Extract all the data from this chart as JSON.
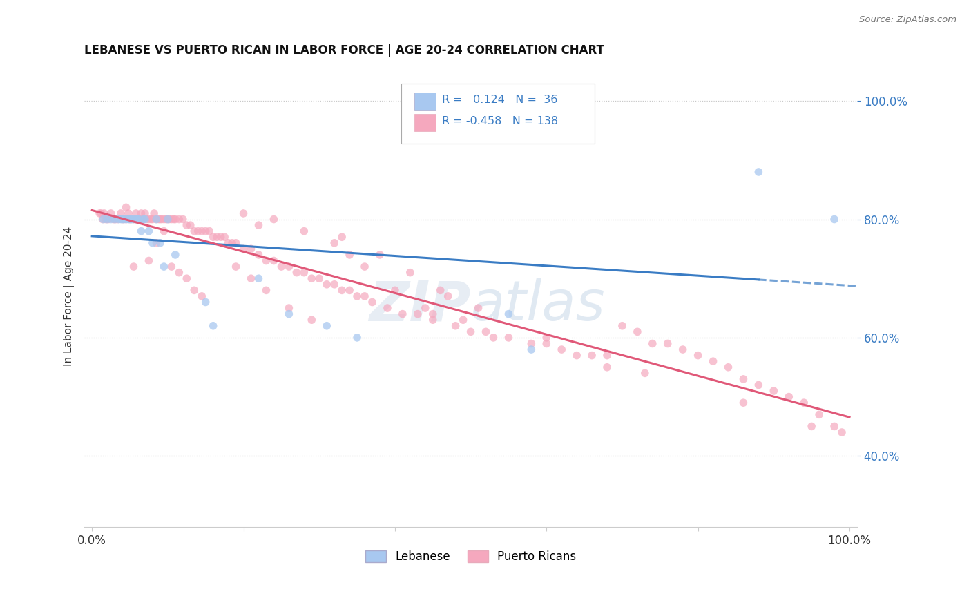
{
  "title": "LEBANESE VS PUERTO RICAN IN LABOR FORCE | AGE 20-24 CORRELATION CHART",
  "source": "Source: ZipAtlas.com",
  "ylabel": "In Labor Force | Age 20-24",
  "legend_blue_r": "0.124",
  "legend_blue_n": "36",
  "legend_pink_r": "-0.458",
  "legend_pink_n": "138",
  "blue_color": "#a8c8f0",
  "pink_color": "#f5a8be",
  "line_blue": "#3a7cc4",
  "line_pink": "#e05878",
  "blue_x": [
    0.015,
    0.02,
    0.025,
    0.03,
    0.035,
    0.038,
    0.04,
    0.042,
    0.045,
    0.048,
    0.05,
    0.052,
    0.055,
    0.058,
    0.06,
    0.062,
    0.065,
    0.068,
    0.07,
    0.075,
    0.08,
    0.085,
    0.09,
    0.095,
    0.1,
    0.11,
    0.15,
    0.16,
    0.22,
    0.26,
    0.31,
    0.35,
    0.55,
    0.58,
    0.88,
    0.98
  ],
  "blue_y": [
    0.8,
    0.8,
    0.8,
    0.8,
    0.8,
    0.8,
    0.8,
    0.8,
    0.8,
    0.8,
    0.8,
    0.8,
    0.8,
    0.8,
    0.8,
    0.8,
    0.78,
    0.8,
    0.8,
    0.78,
    0.76,
    0.8,
    0.76,
    0.72,
    0.8,
    0.74,
    0.66,
    0.62,
    0.7,
    0.64,
    0.62,
    0.6,
    0.64,
    0.58,
    0.88,
    0.8
  ],
  "pink_x": [
    0.01,
    0.012,
    0.014,
    0.016,
    0.018,
    0.02,
    0.022,
    0.025,
    0.028,
    0.03,
    0.032,
    0.035,
    0.038,
    0.04,
    0.042,
    0.045,
    0.048,
    0.05,
    0.052,
    0.055,
    0.058,
    0.06,
    0.062,
    0.065,
    0.068,
    0.07,
    0.072,
    0.075,
    0.078,
    0.08,
    0.082,
    0.085,
    0.088,
    0.09,
    0.092,
    0.095,
    0.098,
    0.1,
    0.102,
    0.105,
    0.108,
    0.11,
    0.115,
    0.12,
    0.125,
    0.13,
    0.135,
    0.14,
    0.145,
    0.15,
    0.155,
    0.16,
    0.165,
    0.17,
    0.175,
    0.18,
    0.185,
    0.19,
    0.2,
    0.21,
    0.22,
    0.23,
    0.24,
    0.25,
    0.26,
    0.27,
    0.28,
    0.29,
    0.3,
    0.31,
    0.32,
    0.33,
    0.34,
    0.35,
    0.36,
    0.37,
    0.39,
    0.41,
    0.43,
    0.45,
    0.48,
    0.5,
    0.52,
    0.55,
    0.58,
    0.6,
    0.62,
    0.64,
    0.66,
    0.68,
    0.7,
    0.72,
    0.74,
    0.76,
    0.78,
    0.8,
    0.82,
    0.84,
    0.86,
    0.88,
    0.9,
    0.92,
    0.94,
    0.96,
    0.98,
    0.99,
    0.055,
    0.075,
    0.085,
    0.095,
    0.105,
    0.115,
    0.125,
    0.135,
    0.145,
    0.19,
    0.21,
    0.23,
    0.26,
    0.29,
    0.33,
    0.38,
    0.42,
    0.46,
    0.51,
    0.24,
    0.28,
    0.32,
    0.36,
    0.4,
    0.44,
    0.49,
    0.53,
    0.2,
    0.34,
    0.47,
    0.6,
    0.73,
    0.86,
    0.95,
    0.045,
    0.065,
    0.22,
    0.45,
    0.68
  ],
  "pink_y": [
    0.81,
    0.81,
    0.8,
    0.81,
    0.8,
    0.8,
    0.8,
    0.81,
    0.8,
    0.8,
    0.8,
    0.8,
    0.81,
    0.8,
    0.8,
    0.8,
    0.81,
    0.8,
    0.8,
    0.8,
    0.81,
    0.8,
    0.8,
    0.8,
    0.8,
    0.81,
    0.8,
    0.8,
    0.8,
    0.8,
    0.81,
    0.8,
    0.8,
    0.8,
    0.8,
    0.8,
    0.8,
    0.8,
    0.8,
    0.8,
    0.8,
    0.8,
    0.8,
    0.8,
    0.79,
    0.79,
    0.78,
    0.78,
    0.78,
    0.78,
    0.78,
    0.77,
    0.77,
    0.77,
    0.77,
    0.76,
    0.76,
    0.76,
    0.75,
    0.75,
    0.74,
    0.73,
    0.73,
    0.72,
    0.72,
    0.71,
    0.71,
    0.7,
    0.7,
    0.69,
    0.69,
    0.68,
    0.68,
    0.67,
    0.67,
    0.66,
    0.65,
    0.64,
    0.64,
    0.63,
    0.62,
    0.61,
    0.61,
    0.6,
    0.59,
    0.59,
    0.58,
    0.57,
    0.57,
    0.55,
    0.62,
    0.61,
    0.59,
    0.59,
    0.58,
    0.57,
    0.56,
    0.55,
    0.53,
    0.52,
    0.51,
    0.5,
    0.49,
    0.47,
    0.45,
    0.44,
    0.72,
    0.73,
    0.76,
    0.78,
    0.72,
    0.71,
    0.7,
    0.68,
    0.67,
    0.72,
    0.7,
    0.68,
    0.65,
    0.63,
    0.77,
    0.74,
    0.71,
    0.68,
    0.65,
    0.8,
    0.78,
    0.76,
    0.72,
    0.68,
    0.65,
    0.63,
    0.6,
    0.81,
    0.74,
    0.67,
    0.6,
    0.54,
    0.49,
    0.45,
    0.82,
    0.81,
    0.79,
    0.64,
    0.57
  ]
}
